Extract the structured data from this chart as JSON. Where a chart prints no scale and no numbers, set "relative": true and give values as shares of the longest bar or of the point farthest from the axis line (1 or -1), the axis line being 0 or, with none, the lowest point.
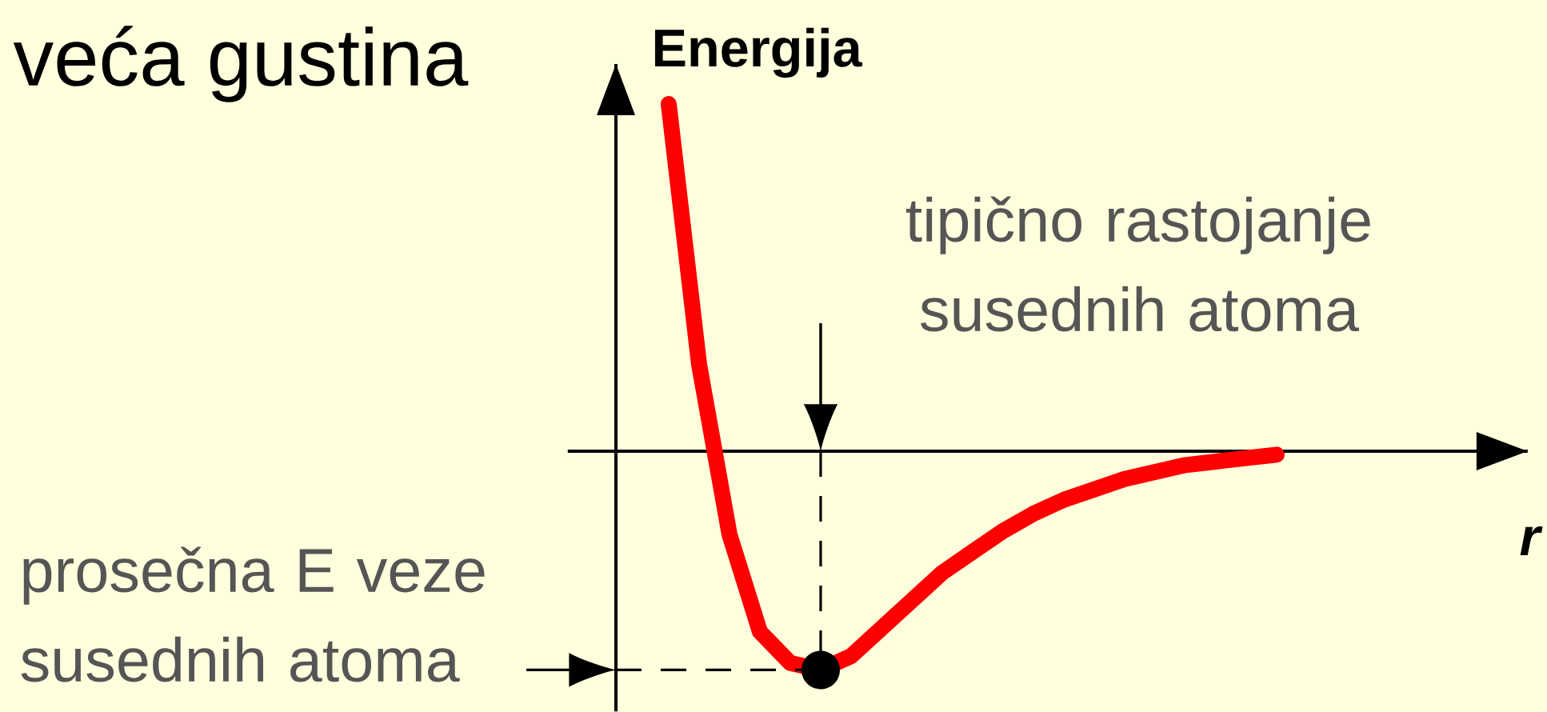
{
  "chart_data": {
    "type": "line",
    "relative": true,
    "xlabel": "r",
    "ylabel": "Energija",
    "marker": "none",
    "line_style": "solid",
    "categories": [
      null,
      null,
      null,
      null,
      null,
      null,
      null,
      null,
      null,
      null,
      null,
      null,
      null,
      null,
      null,
      null,
      null,
      null,
      null,
      null,
      null
    ],
    "series": [
      {
        "color": "#ff0000",
        "values": [
          1.0,
          0.25,
          -0.24,
          -0.52,
          -0.61,
          -0.63,
          -0.59,
          -0.51,
          -0.43,
          -0.35,
          -0.29,
          -0.23,
          -0.18,
          -0.14,
          -0.11,
          -0.08,
          -0.06,
          -0.04,
          -0.03,
          -0.02,
          -0.01
        ]
      }
    ],
    "annotations": [
      "veća gustina",
      "tipično rastojanje susednih atoma",
      "prosečna E veze susednih atoma"
    ]
  }
}
